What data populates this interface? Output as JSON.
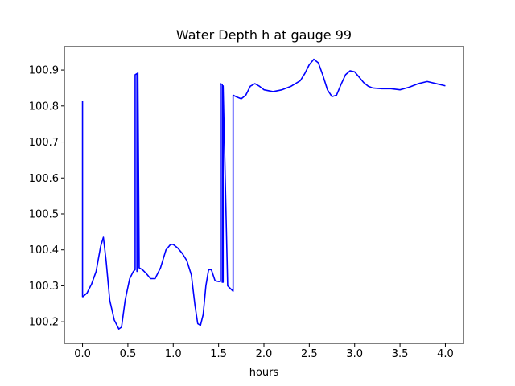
{
  "chart_data": {
    "type": "line",
    "title": "Water Depth h at gauge 99",
    "xlabel": "hours",
    "ylabel": "",
    "xlim": [
      -0.2,
      4.2
    ],
    "ylim": [
      100.14,
      100.965
    ],
    "x_ticks": [
      0.0,
      0.5,
      1.0,
      1.5,
      2.0,
      2.5,
      3.0,
      3.5,
      4.0
    ],
    "x_tick_labels": [
      "0.0",
      "0.5",
      "1.0",
      "1.5",
      "2.0",
      "2.5",
      "3.0",
      "3.5",
      "4.0"
    ],
    "y_ticks": [
      100.2,
      100.3,
      100.4,
      100.5,
      100.6,
      100.7,
      100.8,
      100.9
    ],
    "y_tick_labels": [
      "100.2",
      "100.3",
      "100.4",
      "100.5",
      "100.6",
      "100.7",
      "100.8",
      "100.9"
    ],
    "grid": false,
    "series": [
      {
        "color": "#0000ff",
        "x": [
          0.0,
          0.0,
          0.005,
          0.05,
          0.1,
          0.15,
          0.2,
          0.23,
          0.26,
          0.3,
          0.35,
          0.4,
          0.43,
          0.47,
          0.52,
          0.56,
          0.58,
          0.58,
          0.6,
          0.6,
          0.61,
          0.61,
          0.625,
          0.66,
          0.7,
          0.75,
          0.8,
          0.86,
          0.92,
          0.97,
          1.0,
          1.05,
          1.1,
          1.15,
          1.2,
          1.24,
          1.27,
          1.3,
          1.33,
          1.36,
          1.39,
          1.42,
          1.44,
          1.46,
          1.48,
          1.5,
          1.52,
          1.52,
          1.54,
          1.54,
          1.55,
          1.55,
          1.6,
          1.64,
          1.66,
          1.66,
          1.7,
          1.75,
          1.8,
          1.85,
          1.9,
          1.95,
          2.0,
          2.1,
          2.2,
          2.3,
          2.4,
          2.45,
          2.5,
          2.55,
          2.6,
          2.65,
          2.7,
          2.75,
          2.8,
          2.85,
          2.9,
          2.95,
          3.0,
          3.05,
          3.1,
          3.15,
          3.2,
          3.3,
          3.4,
          3.5,
          3.6,
          3.7,
          3.8,
          3.9,
          4.0
        ],
        "y": [
          100.815,
          100.27,
          100.27,
          100.28,
          100.305,
          100.34,
          100.41,
          100.435,
          100.37,
          100.26,
          100.205,
          100.18,
          100.185,
          100.26,
          100.32,
          100.34,
          100.345,
          100.887,
          100.89,
          100.34,
          100.35,
          100.893,
          100.35,
          100.345,
          100.335,
          100.32,
          100.32,
          100.35,
          100.4,
          100.415,
          100.415,
          100.405,
          100.39,
          100.37,
          100.33,
          100.245,
          100.195,
          100.19,
          100.22,
          100.3,
          100.345,
          100.345,
          100.33,
          100.315,
          100.313,
          100.312,
          100.312,
          100.862,
          100.86,
          100.31,
          100.31,
          100.856,
          100.3,
          100.29,
          100.285,
          100.83,
          100.825,
          100.82,
          100.83,
          100.855,
          100.862,
          100.855,
          100.845,
          100.84,
          100.845,
          100.855,
          100.87,
          100.89,
          100.915,
          100.93,
          100.92,
          100.885,
          100.845,
          100.826,
          100.83,
          100.86,
          100.887,
          100.898,
          100.895,
          100.88,
          100.865,
          100.855,
          100.85,
          100.848,
          100.848,
          100.845,
          100.852,
          100.862,
          100.868,
          100.862,
          100.856
        ]
      }
    ]
  }
}
